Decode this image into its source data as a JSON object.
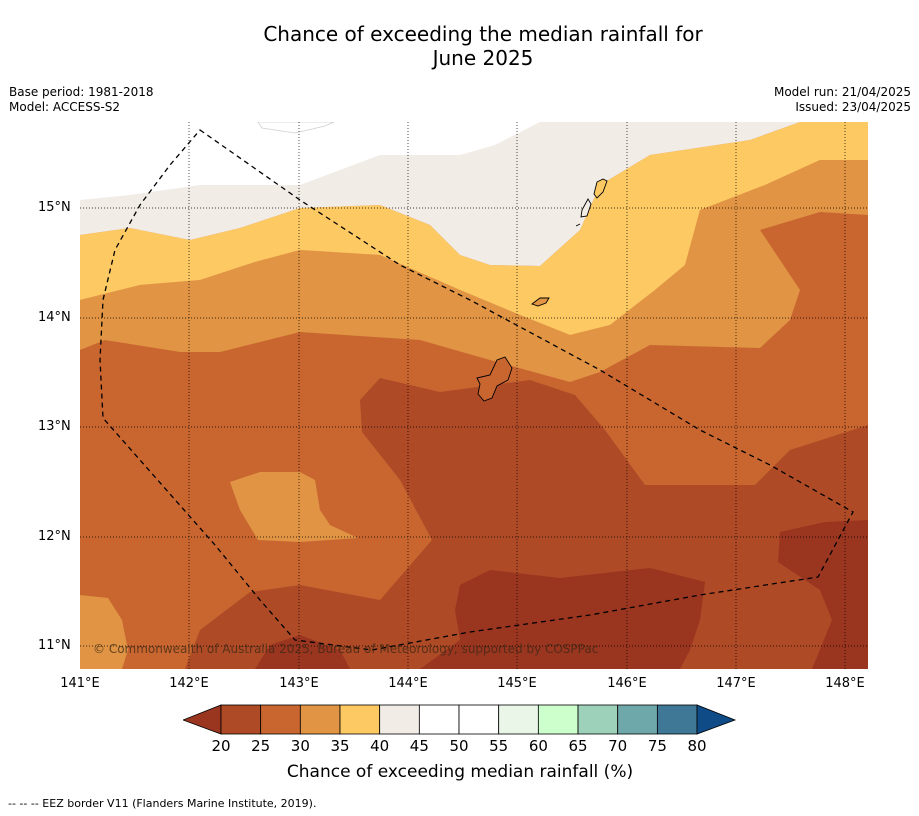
{
  "title_line1": "Chance of exceeding the median rainfall for",
  "title_line2": "June 2025",
  "meta": {
    "base_period": "Base period: 1981-2018",
    "model": "Model: ACCESS-S2",
    "model_run": "Model run: 21/04/2025",
    "issued": "Issued: 23/04/2025"
  },
  "copyright": "© Commonwealth of Australia 2025, Bureau of Meteorology, supported by COSPPac",
  "lat_labels": [
    "15°N",
    "14°N",
    "13°N",
    "12°N",
    "11°N"
  ],
  "lon_labels": [
    "141°E",
    "142°E",
    "143°E",
    "144°E",
    "145°E",
    "146°E",
    "147°E",
    "148°E"
  ],
  "colorbar": {
    "ticks": [
      "20",
      "25",
      "30",
      "35",
      "40",
      "45",
      "50",
      "55",
      "60",
      "65",
      "70",
      "75",
      "80"
    ],
    "under_color": "#9a3520",
    "over_color": "#0f4b87",
    "colors": [
      "#ae4a26",
      "#c96630",
      "#e09444",
      "#fdc963",
      "#f1ece6",
      "#ffffff",
      "#ffffff",
      "#e9f6e8",
      "#ccffcc",
      "#9dd1b9",
      "#6fa8aa",
      "#3f7896"
    ],
    "label": "Chance of exceeding median rainfall (%)"
  },
  "map_colors": {
    "c20": "#9a3520",
    "c25": "#ae4a26",
    "c30": "#c96630",
    "c35": "#e09444",
    "c40": "#fdc963",
    "c45": "#f1ece6"
  },
  "footer": "-- -- -- EEZ border V11 (Flanders Marine Institute, 2019)."
}
